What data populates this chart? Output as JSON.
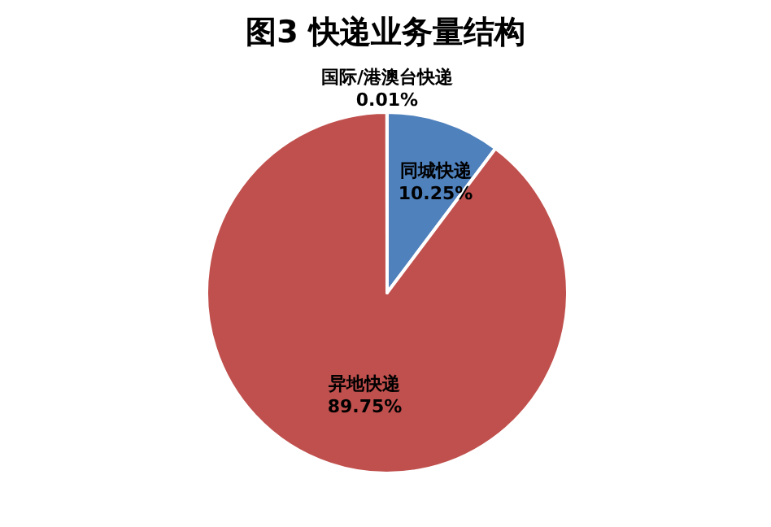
{
  "chart_data": {
    "type": "pie",
    "title": "图3 快递业务量结构",
    "categories": [
      "同城快递",
      "异地快递",
      "国际/港澳台快递"
    ],
    "values": [
      10.25,
      89.75,
      0.01
    ],
    "colors": [
      "#4f81bd",
      "#c0504d",
      "#9bbb59"
    ],
    "value_labels": [
      "10.25%",
      "89.75%",
      "0.01%"
    ],
    "legend": false
  }
}
